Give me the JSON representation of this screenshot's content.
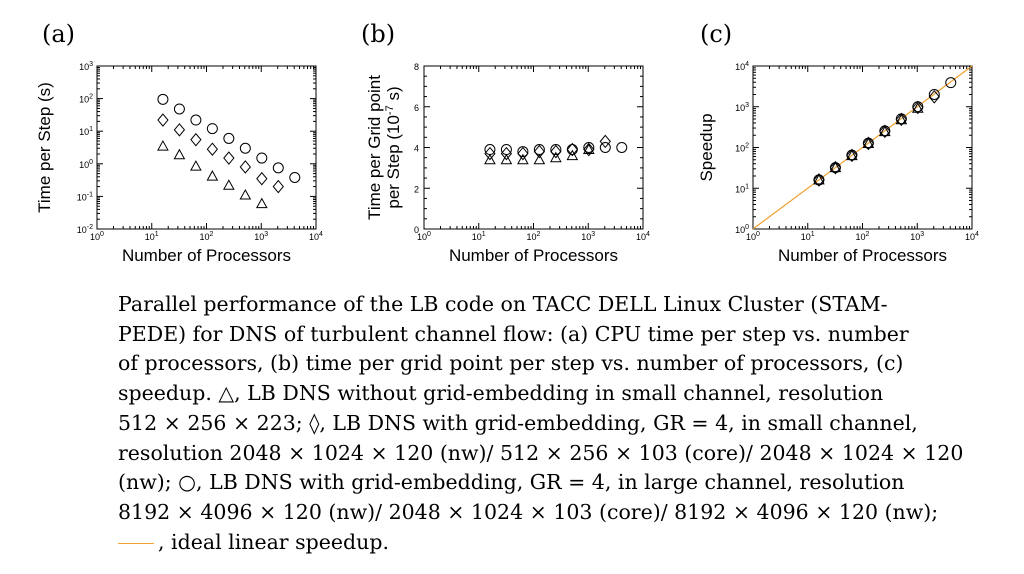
{
  "caption": {
    "lines": [
      "Parallel performance of the LB code on TACC DELL Linux Cluster (STAM-",
      "PEDE) for DNS of turbulent channel flow: (a) CPU time per step vs. number",
      "of processors, (b) time per grid point per step vs. number of processors, (c)",
      "speedup. △, LB DNS without grid-embedding in small channel, resolution",
      "512 × 256 × 223; ◊, LB DNS with grid-embedding, GR = 4, in small channel,",
      "resolution 2048 × 1024 × 120 (nw)/ 512 × 256 × 103 (core)/ 2048 × 1024 × 120",
      "(nw); ○, LB DNS with grid-embedding, GR = 4, in large channel, resolution",
      "8192 × 4096 × 120 (nw)/ 2048 × 1024 × 103 (core)/ 8192 × 4096 × 120 (nw);"
    ],
    "last_line": ", ideal linear speedup."
  },
  "chart_data": [
    {
      "panel": "(a)",
      "type": "scatter",
      "xlabel": "Number of Processors",
      "ylabel": "Time per Step (s)",
      "xscale": "log",
      "yscale": "log",
      "xlim": [
        1,
        10000
      ],
      "ylim": [
        0.01,
        1000
      ],
      "xticks": [
        "10^0",
        "10^1",
        "10^2",
        "10^3",
        "10^4"
      ],
      "yticks": [
        "10^-2",
        "10^-1",
        "10^0",
        "10^1",
        "10^2",
        "10^3"
      ],
      "series": [
        {
          "marker": "triangle",
          "x": [
            16,
            32,
            64,
            128,
            256,
            512,
            1024
          ],
          "y": [
            3.5,
            1.9,
            0.85,
            0.42,
            0.22,
            0.11,
            0.06
          ]
        },
        {
          "marker": "diamond",
          "x": [
            16,
            32,
            64,
            128,
            256,
            512,
            1024,
            2048
          ],
          "y": [
            22,
            11,
            5.5,
            2.8,
            1.5,
            0.8,
            0.35,
            0.2
          ]
        },
        {
          "marker": "circle",
          "x": [
            16,
            32,
            64,
            128,
            256,
            512,
            1024,
            2048,
            4096
          ],
          "y": [
            95,
            48,
            22,
            12,
            6,
            3,
            1.5,
            0.75,
            0.38
          ]
        }
      ]
    },
    {
      "panel": "(b)",
      "type": "scatter",
      "xlabel": "Number of Processors",
      "ylabel": "Time per Grid point per Step (10^-7 s)",
      "ylabel_lines": [
        "Time per Grid point",
        "per Step (10",
        "-7",
        "s)"
      ],
      "xscale": "log",
      "yscale": "linear",
      "xlim": [
        1,
        10000
      ],
      "ylim": [
        0,
        8
      ],
      "xticks": [
        "10^0",
        "10^1",
        "10^2",
        "10^3",
        "10^4"
      ],
      "yticks": [
        "0",
        "2",
        "4",
        "6",
        "8"
      ],
      "series": [
        {
          "marker": "triangle",
          "x": [
            16,
            32,
            64,
            128,
            256,
            512,
            1024
          ],
          "y": [
            3.4,
            3.4,
            3.4,
            3.4,
            3.5,
            3.6,
            3.9
          ]
        },
        {
          "marker": "diamond",
          "x": [
            16,
            32,
            64,
            128,
            256,
            512,
            1024,
            2048
          ],
          "y": [
            3.7,
            3.7,
            3.7,
            3.8,
            3.8,
            3.9,
            3.9,
            4.3
          ]
        },
        {
          "marker": "circle",
          "x": [
            16,
            32,
            64,
            128,
            256,
            512,
            1024,
            2048,
            4096
          ],
          "y": [
            3.9,
            3.9,
            3.8,
            3.9,
            3.9,
            3.9,
            4.0,
            4.0,
            4.0
          ]
        }
      ]
    },
    {
      "panel": "(c)",
      "type": "scatter",
      "xlabel": "Number of Processors",
      "ylabel": "Speedup",
      "xscale": "log",
      "yscale": "log",
      "xlim": [
        1,
        10000
      ],
      "ylim": [
        1,
        10000
      ],
      "xticks": [
        "10^0",
        "10^1",
        "10^2",
        "10^3",
        "10^4"
      ],
      "yticks": [
        "10^0",
        "10^1",
        "10^2",
        "10^3",
        "10^4"
      ],
      "ideal_line": {
        "x": [
          1,
          10000
        ],
        "y": [
          1,
          10000
        ],
        "color": "#f0a030"
      },
      "series": [
        {
          "marker": "triangle",
          "x": [
            16,
            32,
            64,
            128,
            256,
            512,
            1024
          ],
          "y": [
            16,
            32,
            63,
            125,
            245,
            480,
            920
          ]
        },
        {
          "marker": "diamond",
          "x": [
            16,
            32,
            64,
            128,
            256,
            512,
            1024,
            2048
          ],
          "y": [
            16,
            32,
            64,
            126,
            250,
            490,
            960,
            1750
          ]
        },
        {
          "marker": "circle",
          "x": [
            16,
            32,
            64,
            128,
            256,
            512,
            1024,
            2048,
            4096
          ],
          "y": [
            16,
            32,
            65,
            128,
            255,
            505,
            1000,
            2000,
            3900
          ]
        }
      ]
    }
  ]
}
